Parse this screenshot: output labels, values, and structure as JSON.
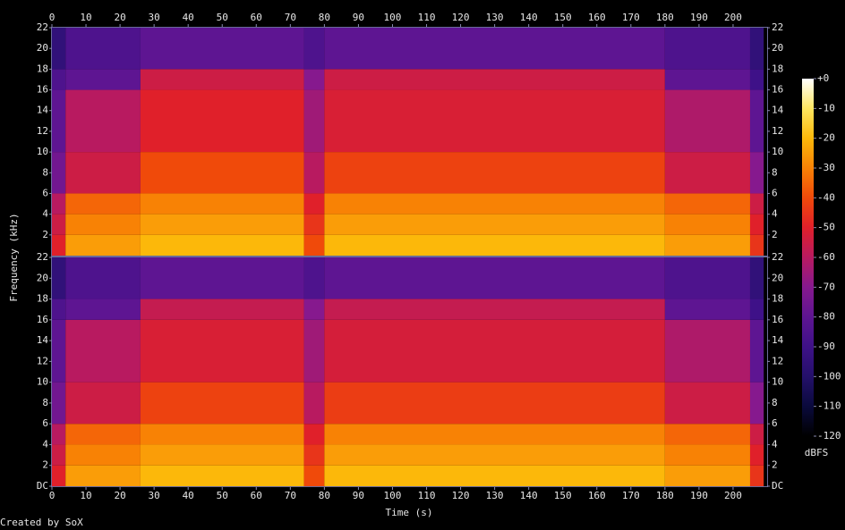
{
  "chart_data": {
    "type": "spectrogram",
    "xlabel": "Time (s)",
    "ylabel": "Frequency (kHz)",
    "credit": "Created by SoX",
    "xlim": [
      0,
      210
    ],
    "xticks": [
      0,
      10,
      20,
      30,
      40,
      50,
      60,
      70,
      80,
      90,
      100,
      110,
      120,
      130,
      140,
      150,
      160,
      170,
      180,
      190,
      200
    ],
    "time_bins": [
      0,
      4,
      26,
      74,
      80,
      180,
      205,
      209
    ],
    "freq_bins": [
      0,
      2,
      4,
      6,
      10,
      16,
      18,
      22
    ],
    "channels": [
      {
        "ylim": [
          0,
          22
        ],
        "yticks": [
          2,
          4,
          6,
          8,
          10,
          12,
          14,
          16,
          18,
          20,
          22
        ],
        "values": [
          [
            -50,
            -25,
            -20,
            -40,
            -20,
            -25,
            -45
          ],
          [
            -55,
            -30,
            -25,
            -45,
            -25,
            -30,
            -50
          ],
          [
            -60,
            -35,
            -30,
            -50,
            -30,
            -35,
            -55
          ],
          [
            -75,
            -55,
            -40,
            -60,
            -42,
            -55,
            -70
          ],
          [
            -80,
            -60,
            -50,
            -65,
            -52,
            -62,
            -80
          ],
          [
            -85,
            -80,
            -55,
            -70,
            -55,
            -80,
            -90
          ],
          [
            -95,
            -85,
            -80,
            -85,
            -80,
            -85,
            -95
          ]
        ]
      },
      {
        "ylim": [
          0,
          22
        ],
        "yticks": [
          {
            "value": 0,
            "label": "DC"
          },
          2,
          4,
          6,
          8,
          10,
          12,
          14,
          16,
          18,
          20,
          22
        ],
        "values": [
          [
            -50,
            -25,
            -20,
            -40,
            -20,
            -25,
            -45
          ],
          [
            -55,
            -30,
            -25,
            -45,
            -25,
            -30,
            -50
          ],
          [
            -60,
            -35,
            -30,
            -50,
            -30,
            -35,
            -55
          ],
          [
            -75,
            -55,
            -42,
            -60,
            -43,
            -55,
            -70
          ],
          [
            -80,
            -60,
            -52,
            -65,
            -53,
            -62,
            -80
          ],
          [
            -85,
            -80,
            -57,
            -70,
            -57,
            -80,
            -90
          ],
          [
            -95,
            -85,
            -80,
            -85,
            -80,
            -85,
            -95
          ]
        ]
      }
    ],
    "colorbar": {
      "label": "dBFS",
      "clim": [
        -120,
        0
      ],
      "ticks": [
        {
          "value": 0,
          "label": "+0"
        },
        -10,
        -20,
        -30,
        -40,
        -50,
        -60,
        -70,
        -80,
        -90,
        -100,
        -110,
        -120
      ],
      "colors": [
        "#000000",
        "#0a0a3c",
        "#24106a",
        "#3e1188",
        "#5e1592",
        "#86198e",
        "#b81a60",
        "#e0202a",
        "#f04a0a",
        "#f88205",
        "#fcb80a",
        "#fee660",
        "#ffffff"
      ]
    }
  }
}
